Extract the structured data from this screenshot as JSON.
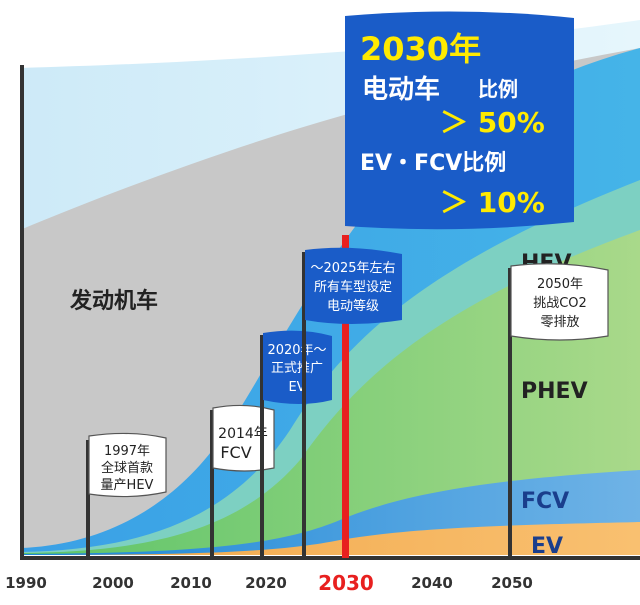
{
  "chart_data": {
    "type": "area",
    "x_ticks": [
      "1990",
      "2000",
      "2010",
      "2020",
      "2030",
      "2040",
      "2050"
    ],
    "highlight_x": "2030",
    "series": [
      {
        "name": "发动机车",
        "color": "#c9c9c9"
      },
      {
        "name": "HEV",
        "color": "#2e9be0"
      },
      {
        "name": "PHEV",
        "color": "#8fce5c"
      },
      {
        "name": "FCV",
        "color": "#2a8fd6"
      },
      {
        "name": "EV",
        "color": "#f3a54a"
      }
    ],
    "milestones": [
      {
        "year": 1997,
        "lines": [
          "1997年",
          "全球首款",
          "量产HEV"
        ],
        "style": "white"
      },
      {
        "year": 2014,
        "lines": [
          "2014年",
          "FCV"
        ],
        "style": "white"
      },
      {
        "year": 2020,
        "lines": [
          "2020年～",
          "正式推广",
          "EV"
        ],
        "style": "blue"
      },
      {
        "year": 2025,
        "lines": [
          "～2025年左右",
          "所有车型设定",
          "电动等级"
        ],
        "style": "blue"
      },
      {
        "year": 2050,
        "lines": [
          "2050年",
          "挑战CO2",
          "零排放"
        ],
        "style": "white"
      }
    ],
    "banner": {
      "title": "2030年",
      "line1_a": "电动车",
      "line1_b": "比例",
      "line2": "＞ 50%",
      "line3": "EV・FCV比例",
      "line4": "＞ 10%"
    },
    "colors": {
      "axis": "#333333",
      "highlight": "#e8201f",
      "banner": "#1a5cc8"
    }
  }
}
